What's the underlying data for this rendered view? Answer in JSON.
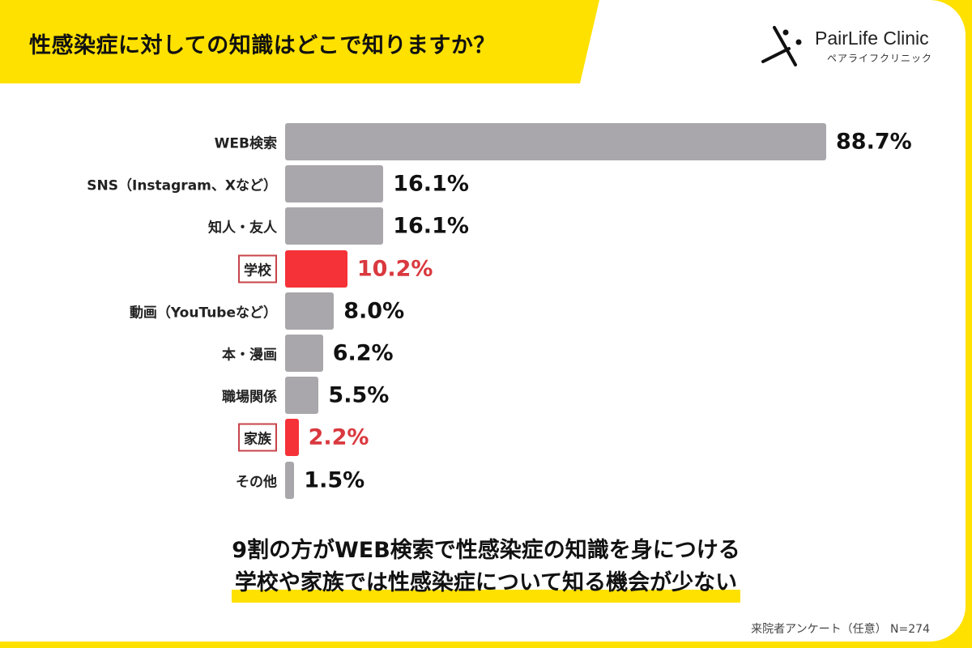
{
  "header": {
    "title": "性感染症に対しての知識はどこで知りますか？"
  },
  "logo": {
    "name": "PairLife Clinic",
    "kana": "ペアライフクリニック"
  },
  "colors": {
    "accent_yellow": "#ffe100",
    "bar_default": "#a9a7ab",
    "bar_highlight": "#f53238",
    "label_highlight": "#d9393f"
  },
  "chart_data": {
    "type": "bar",
    "orientation": "horizontal",
    "title": "性感染症に対しての知識はどこで知りますか？",
    "categories": [
      "WEB検索",
      "SNS（Instagram、Xなど）",
      "知人・友人",
      "学校",
      "動画（YouTubeなど）",
      "本・漫画",
      "職場関係",
      "家族",
      "その他"
    ],
    "values": [
      88.7,
      16.1,
      16.1,
      10.2,
      8.0,
      6.2,
      5.5,
      2.2,
      1.5
    ],
    "value_labels": [
      "88.7%",
      "16.1%",
      "16.1%",
      "10.2%",
      "8.0%",
      "6.2%",
      "5.5%",
      "2.2%",
      "1.5%"
    ],
    "highlighted": [
      "学校",
      "家族"
    ],
    "unit": "%",
    "xlim": [
      0,
      88.7
    ],
    "grid": false,
    "legend": "none"
  },
  "summary": {
    "line1": "9割の方がWEB検索で性感染症の知識を身につける",
    "line2": "学校や家族では性感染症について知る機会が少ない"
  },
  "footnote": "来院者アンケート（任意） N=274"
}
